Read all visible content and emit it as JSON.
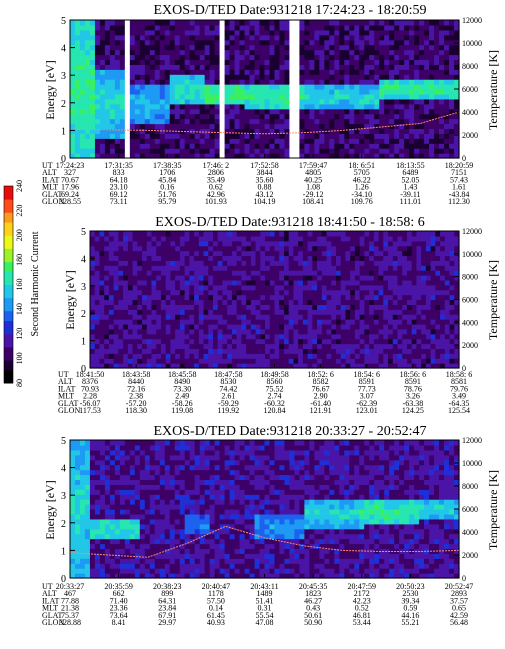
{
  "colorbar": {
    "label": "Second Harmonic Current",
    "ticks": [
      "80",
      "100",
      "120",
      "140",
      "160",
      "180",
      "200",
      "220",
      "240"
    ],
    "range": [
      80,
      240
    ],
    "palette": [
      "#000000",
      "#1a0030",
      "#3d0066",
      "#4a15a6",
      "#1f2fd8",
      "#1d62ee",
      "#1e9af4",
      "#22c7e8",
      "#27e6b0",
      "#3bf05e",
      "#9af22b",
      "#ecf81a",
      "#ffd11a",
      "#ff9a1a",
      "#ff4d1a",
      "#e80d0d"
    ]
  },
  "chart_data": [
    {
      "type": "heatmap",
      "title": "EXOS-D/TED   Date:931218   17:24:23 - 18:20:59",
      "ylabel": "Energy [eV]",
      "ylabel2": "Temperature [K]",
      "ylim": [
        0,
        5
      ],
      "ylim2": [
        0,
        12000
      ],
      "yticks": [
        0,
        1,
        2,
        3,
        4,
        5
      ],
      "yticks2": [
        0,
        2000,
        4000,
        6000,
        8000,
        10000,
        12000
      ],
      "background_level": 105,
      "bands": [
        {
          "x_start": 0.0,
          "x_end": 0.06,
          "e_low": 0.0,
          "e_high": 5.0,
          "level": 170
        },
        {
          "x_start": 0.06,
          "x_end": 0.14,
          "e_low": 0.8,
          "e_high": 3.2,
          "level": 160
        },
        {
          "x_start": 0.14,
          "x_end": 0.26,
          "e_low": 1.2,
          "e_high": 2.6,
          "level": 150
        },
        {
          "x_start": 0.26,
          "x_end": 0.35,
          "e_low": 2.0,
          "e_high": 3.0,
          "level": 165
        },
        {
          "x_start": 0.35,
          "x_end": 0.45,
          "e_low": 1.9,
          "e_high": 2.7,
          "level": 175
        },
        {
          "x_start": 0.45,
          "x_end": 0.6,
          "e_low": 1.8,
          "e_high": 2.7,
          "level": 170
        },
        {
          "x_start": 0.6,
          "x_end": 0.8,
          "e_low": 1.8,
          "e_high": 2.6,
          "level": 160
        },
        {
          "x_start": 0.8,
          "x_end": 1.0,
          "e_low": 2.2,
          "e_high": 2.8,
          "level": 170
        }
      ],
      "data_gaps": [
        [
          0.135,
          0.16
        ],
        [
          0.385,
          0.395
        ],
        [
          0.57,
          0.585
        ]
      ],
      "temperature_curve": {
        "x": [
          0.0,
          0.1,
          0.2,
          0.3,
          0.4,
          0.5,
          0.6,
          0.7,
          0.8,
          0.9,
          1.0
        ],
        "y": [
          2500,
          2450,
          2400,
          2300,
          2200,
          2100,
          2200,
          2400,
          2700,
          3000,
          4000
        ]
      },
      "ephemeris": {
        "labels": [
          "UT",
          "ALT",
          "ILAT",
          "MLT",
          "GLAT",
          "GLON"
        ],
        "columns": [
          [
            "17:24:23",
            "327",
            "70.67",
            "17.96",
            "69.24",
            "328.55"
          ],
          [
            "17:31:35",
            "833",
            "64.18",
            "23.10",
            "69.12",
            "73.11"
          ],
          [
            "17:38:35",
            "1706",
            "45.84",
            "0.16",
            "51.76",
            "95.79"
          ],
          [
            "17:46: 2",
            "2806",
            "35.49",
            "0.62",
            "42.96",
            "101.93"
          ],
          [
            "17:52:58",
            "3844",
            "35.60",
            "0.88",
            "43.12",
            "104.19"
          ],
          [
            "17:59:47",
            "4805",
            "40.25",
            "1.08",
            "-29.12",
            "108.41"
          ],
          [
            "18: 6:51",
            "5705",
            "46.22",
            "1.26",
            "-34.10",
            "109.76"
          ],
          [
            "18:13:55",
            "6489",
            "52.05",
            "1.43",
            "-39.11",
            "111.01"
          ],
          [
            "18:20:59",
            "7151",
            "57.43",
            "1.61",
            "-43.84",
            "112.30"
          ]
        ]
      }
    },
    {
      "type": "heatmap",
      "title": "EXOS-D/TED   Date:931218   18:41:50 - 18:58: 6",
      "ylabel": "Energy [eV]",
      "ylabel2": "Temperature [K]",
      "ylim": [
        0,
        5
      ],
      "ylim2": [
        0,
        12000
      ],
      "yticks": [
        0,
        1,
        2,
        3,
        4,
        5
      ],
      "yticks2": [
        0,
        2000,
        4000,
        6000,
        8000,
        10000,
        12000
      ],
      "background_level": 110,
      "bands": [],
      "data_gaps": [],
      "temperature_curve": {
        "x": [],
        "y": []
      },
      "ephemeris": {
        "labels": [
          "UT",
          "ALT",
          "ILAT",
          "MLT",
          "GLAT",
          "GLON"
        ],
        "columns": [
          [
            "18:41:50",
            "8376",
            "70.93",
            "2.28",
            "-56.07",
            "117.53"
          ],
          [
            "18:43:58",
            "8440",
            "72.16",
            "2.38",
            "-57.20",
            "118.30"
          ],
          [
            "18:45:58",
            "8490",
            "73.30",
            "2.49",
            "-58.26",
            "119.08"
          ],
          [
            "18:47:58",
            "8530",
            "74.42",
            "2.61",
            "-59.29",
            "119.92"
          ],
          [
            "18:49:58",
            "8560",
            "75.52",
            "2.74",
            "-60.32",
            "120.84"
          ],
          [
            "18:52: 6",
            "8582",
            "76.67",
            "2.90",
            "-61.40",
            "121.91"
          ],
          [
            "18:54: 6",
            "8591",
            "77.73",
            "3.07",
            "-62.39",
            "123.01"
          ],
          [
            "18:56: 6",
            "8591",
            "78.76",
            "3.26",
            "-63.38",
            "124.25"
          ],
          [
            "18:58: 6",
            "8581",
            "79.76",
            "3.49",
            "-64.35",
            "125.54"
          ]
        ]
      }
    },
    {
      "type": "heatmap",
      "title": "EXOS-D/TED   Date:931218   20:33:27 - 20:52:47",
      "ylabel": "Energy [eV]",
      "ylabel2": "Temperature [K]",
      "ylim": [
        0,
        5
      ],
      "ylim2": [
        0,
        12000
      ],
      "yticks": [
        0,
        1,
        2,
        3,
        4,
        5
      ],
      "yticks2": [
        0,
        2000,
        4000,
        6000,
        8000,
        10000,
        12000
      ],
      "background_level": 112,
      "bands": [
        {
          "x_start": 0.0,
          "x_end": 0.05,
          "e_low": 0.0,
          "e_high": 5.0,
          "level": 160
        },
        {
          "x_start": 0.05,
          "x_end": 0.18,
          "e_low": 1.4,
          "e_high": 2.2,
          "level": 165
        },
        {
          "x_start": 0.3,
          "x_end": 0.36,
          "e_low": 1.6,
          "e_high": 2.3,
          "level": 140
        },
        {
          "x_start": 0.48,
          "x_end": 0.6,
          "e_low": 1.4,
          "e_high": 2.3,
          "level": 145
        },
        {
          "x_start": 0.6,
          "x_end": 0.75,
          "e_low": 1.8,
          "e_high": 2.8,
          "level": 160
        },
        {
          "x_start": 0.75,
          "x_end": 0.9,
          "e_low": 2.0,
          "e_high": 2.8,
          "level": 170
        },
        {
          "x_start": 0.9,
          "x_end": 1.0,
          "e_low": 2.2,
          "e_high": 2.9,
          "level": 160
        }
      ],
      "data_gaps": [],
      "temperature_curve": {
        "x": [
          0.0,
          0.1,
          0.2,
          0.3,
          0.4,
          0.5,
          0.6,
          0.7,
          0.8,
          0.9,
          1.0
        ],
        "y": [
          2200,
          2000,
          1800,
          3000,
          4500,
          3500,
          2800,
          2400,
          2300,
          2300,
          2400
        ]
      },
      "ephemeris": {
        "labels": [
          "UT",
          "ALT",
          "ILAT",
          "MLT",
          "GLAT",
          "GLON"
        ],
        "columns": [
          [
            "20:33:27",
            "467",
            "77.88",
            "21.38",
            "75.37",
            "328.88"
          ],
          [
            "20:35:59",
            "662",
            "71.40",
            "23.36",
            "73.64",
            "8.41"
          ],
          [
            "20:38:23",
            "899",
            "64.31",
            "23.84",
            "67.91",
            "29.97"
          ],
          [
            "20:40:47",
            "1178",
            "57.50",
            "0.14",
            "61.45",
            "40.93"
          ],
          [
            "20:43:11",
            "1489",
            "51.41",
            "0.31",
            "55.54",
            "47.08"
          ],
          [
            "20:45:35",
            "1823",
            "46.27",
            "0.43",
            "50.61",
            "50.90"
          ],
          [
            "20:47:59",
            "2172",
            "42.23",
            "0.52",
            "46.81",
            "53.44"
          ],
          [
            "20:50:23",
            "2530",
            "39.34",
            "0.59",
            "44.16",
            "55.21"
          ],
          [
            "20:52:47",
            "2893",
            "37.57",
            "0.65",
            "42.59",
            "56.48"
          ]
        ]
      }
    }
  ]
}
